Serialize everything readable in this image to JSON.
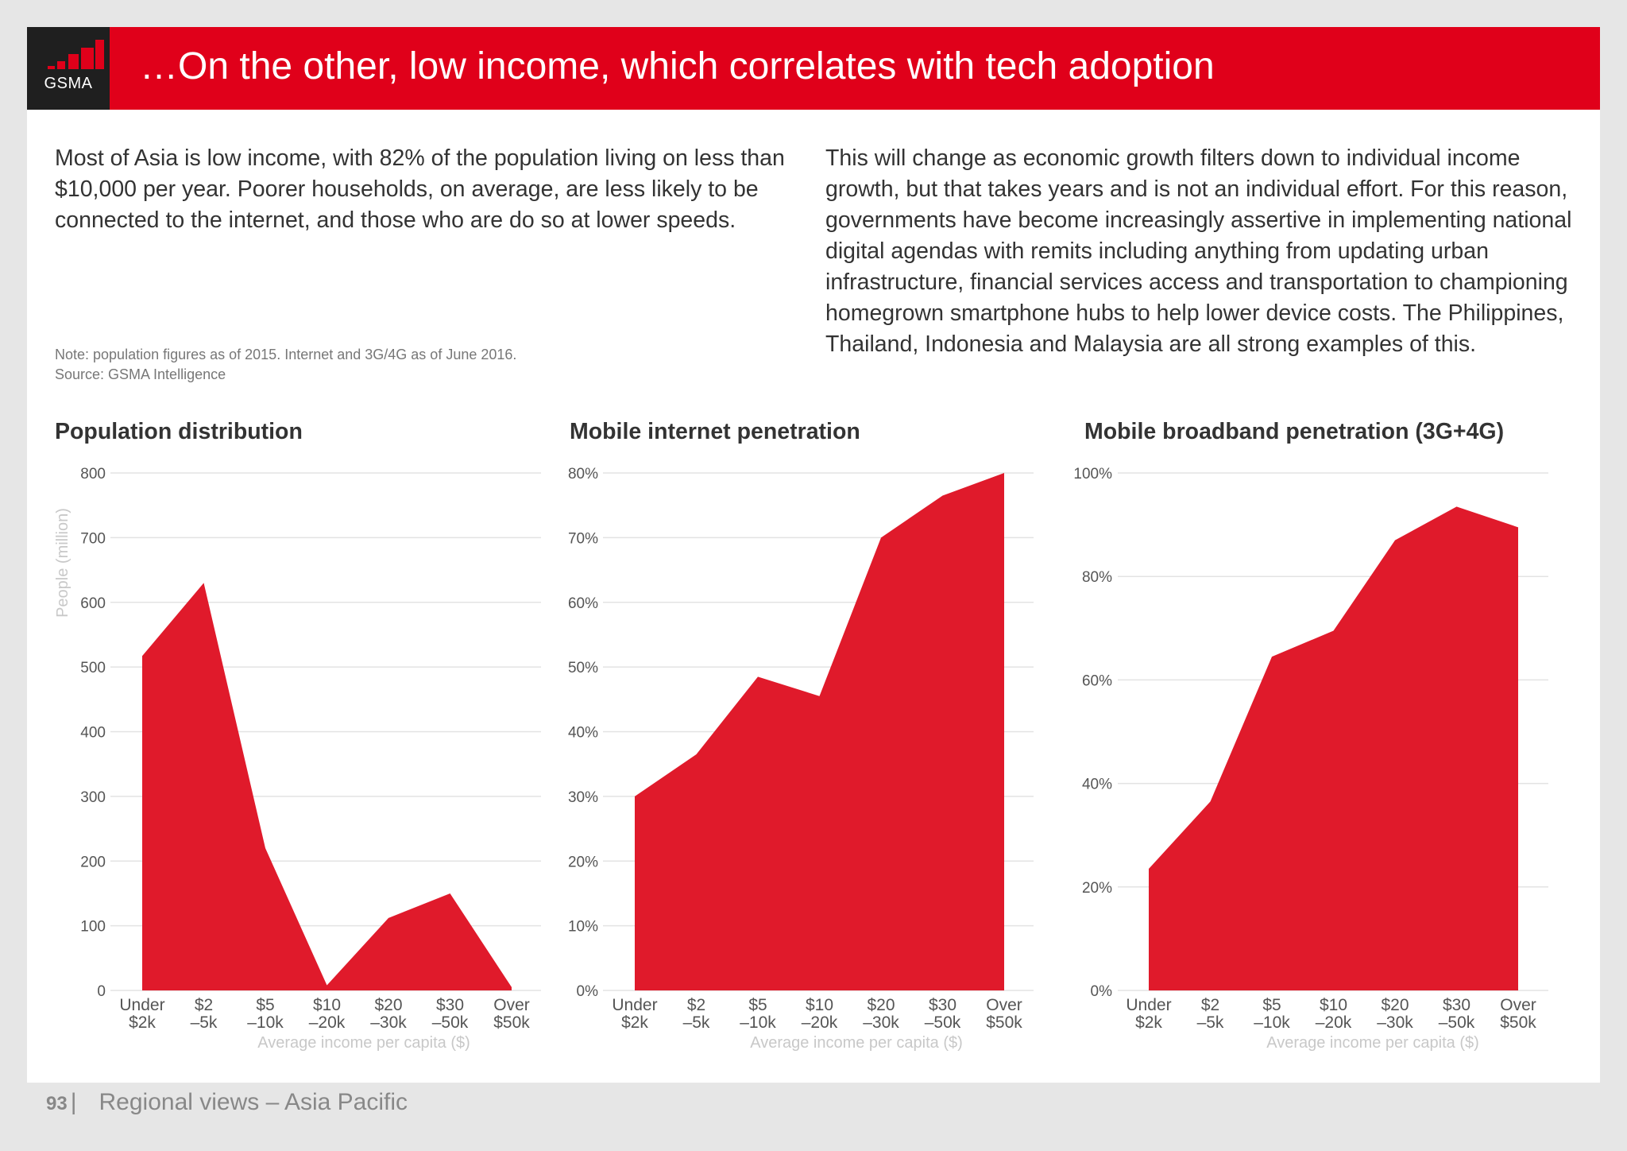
{
  "header": {
    "logo_text": "GSMA",
    "title": "…On the other, low income, which correlates with tech adoption"
  },
  "body_text": {
    "left": "Most of Asia is low income, with 82% of the population living on less than $10,000 per year. Poorer households, on average, are less likely to be connected to the internet, and those who are do so at lower speeds.",
    "right": "This will change as economic growth filters down to individual income growth, but that takes years and is not an individual effort. For this reason, governments have become increasingly assertive in implementing national digital agendas with remits including anything from updating urban infrastructure, financial services access and transportation to championing homegrown smartphone hubs to help lower device costs. The Philippines, Thailand, Indonesia and Malaysia are all strong examples of this.",
    "note": "Note: population figures as of 2015. Internet and 3G/4G as of June 2016.",
    "source": "Source: GSMA Intelligence"
  },
  "colors": {
    "brand_red": "#e0001a",
    "area_red": "#e01a2b",
    "grid": "#e3e3e3",
    "axis_text": "#555555",
    "axis_label": "#c8c8c8"
  },
  "chart_data": [
    {
      "type": "area",
      "title": "Population distribution",
      "ylabel": "People (million)",
      "xlabel": "Average income per capita ($)",
      "categories": [
        [
          "Under",
          "$2k"
        ],
        [
          "$2",
          "–5k"
        ],
        [
          "$5",
          "–10k"
        ],
        [
          "$10",
          "–20k"
        ],
        [
          "$20",
          "–30k"
        ],
        [
          "$30",
          "–50k"
        ],
        [
          "Over",
          "$50k"
        ]
      ],
      "values": [
        517,
        630,
        220,
        8,
        112,
        150,
        5
      ],
      "ylim": [
        0,
        800
      ],
      "yticks": [
        0,
        100,
        200,
        300,
        400,
        500,
        600,
        700,
        800
      ],
      "ytick_labels": [
        "0",
        "100",
        "200",
        "300",
        "400",
        "500",
        "600",
        "700",
        "800"
      ],
      "grid": true
    },
    {
      "type": "area",
      "title": "Mobile internet penetration",
      "ylabel": "",
      "xlabel": "Average income per capita ($)",
      "categories": [
        [
          "Under",
          "$2k"
        ],
        [
          "$2",
          "–5k"
        ],
        [
          "$5",
          "–10k"
        ],
        [
          "$10",
          "–20k"
        ],
        [
          "$20",
          "–30k"
        ],
        [
          "$30",
          "–50k"
        ],
        [
          "Over",
          "$50k"
        ]
      ],
      "values": [
        30,
        36.5,
        48.5,
        45.5,
        70,
        76.5,
        80
      ],
      "ylim": [
        0,
        80
      ],
      "yticks": [
        0,
        10,
        20,
        30,
        40,
        50,
        60,
        70,
        80
      ],
      "ytick_labels": [
        "0%",
        "10%",
        "20%",
        "30%",
        "40%",
        "50%",
        "60%",
        "70%",
        "80%"
      ],
      "grid": true
    },
    {
      "type": "area",
      "title": "Mobile broadband penetration (3G+4G)",
      "ylabel": "",
      "xlabel": "Average income per capita ($)",
      "categories": [
        [
          "Under",
          "$2k"
        ],
        [
          "$2",
          "–5k"
        ],
        [
          "$5",
          "–10k"
        ],
        [
          "$10",
          "–20k"
        ],
        [
          "$20",
          "–30k"
        ],
        [
          "$30",
          "–50k"
        ],
        [
          "Over",
          "$50k"
        ]
      ],
      "values": [
        23.5,
        36.5,
        64.5,
        69.5,
        87,
        93.5,
        89.5
      ],
      "ylim": [
        0,
        100
      ],
      "yticks": [
        0,
        20,
        40,
        60,
        80,
        100
      ],
      "ytick_labels": [
        "0%",
        "20%",
        "40%",
        "60%",
        "80%",
        "100%"
      ],
      "grid": true
    }
  ],
  "footer": {
    "page_number": "93",
    "section": "Regional views – Asia Pacific"
  }
}
